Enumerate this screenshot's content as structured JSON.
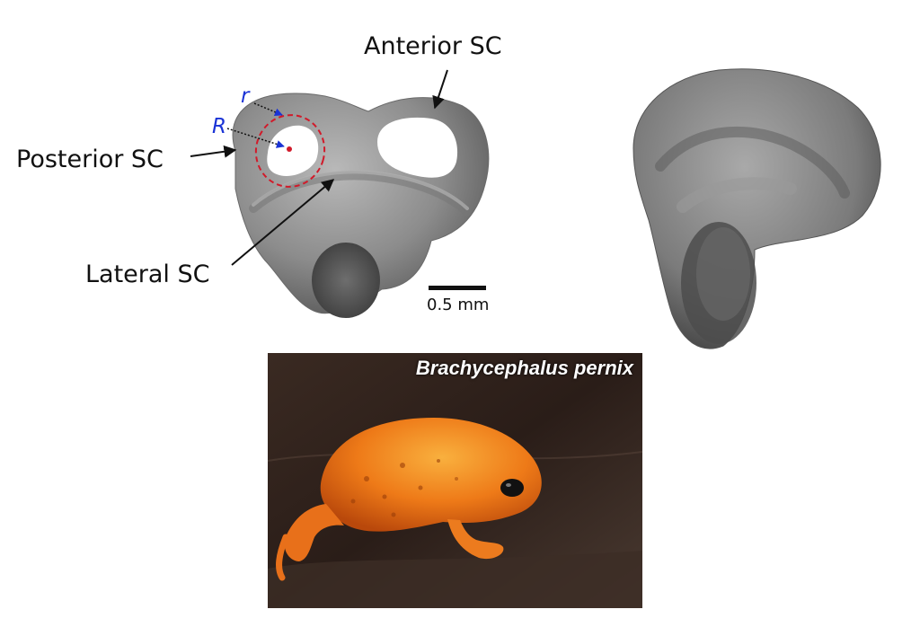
{
  "labels": {
    "anterior": "Anterior SC",
    "posterior": "Posterior SC",
    "lateral": "Lateral SC",
    "r_small": "r",
    "r_large": "R"
  },
  "scale_bar": {
    "label": "0.5 mm"
  },
  "photo": {
    "species": "Brachycephalus pernix"
  },
  "colors": {
    "frog": "#f07a1a",
    "model": "#8e8e8e",
    "annotation": "#1a33d6",
    "circle": "#d11a2a"
  }
}
